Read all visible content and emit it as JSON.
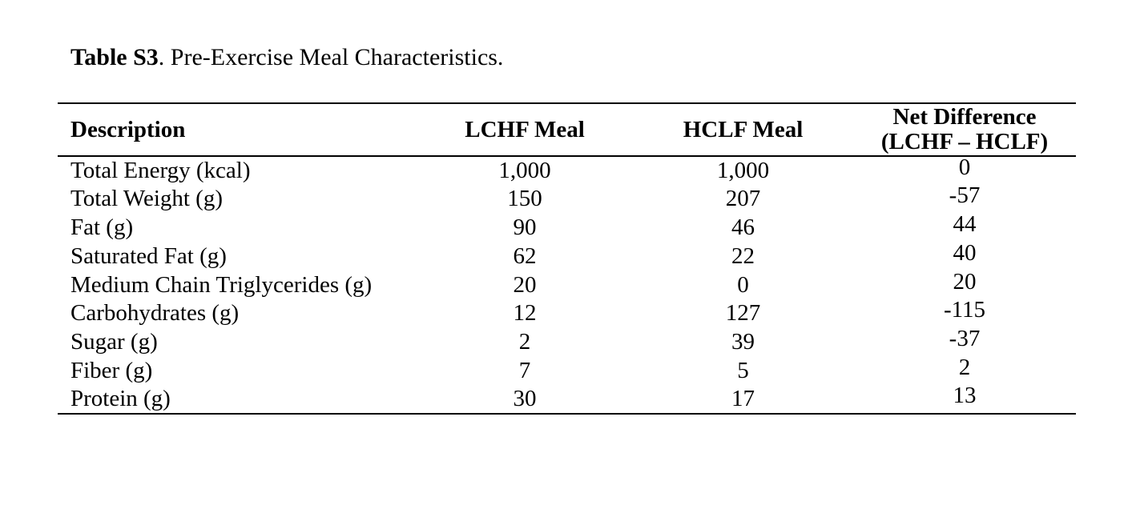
{
  "caption": {
    "label": "Table S3",
    "text": ". Pre-Exercise Meal Characteristics."
  },
  "colors": {
    "background": "#ffffff",
    "text": "#000000",
    "rules": "#000000"
  },
  "table": {
    "headers": {
      "description": "Description",
      "lchf": "LCHF Meal",
      "hclf": "HCLF Meal",
      "net_line1": "Net Difference",
      "net_line2": "(LCHF – HCLF)"
    },
    "rows": [
      {
        "description": "Total Energy (kcal)",
        "lchf": "1,000",
        "hclf": "1,000",
        "net": "0"
      },
      {
        "description": "Total Weight (g)",
        "lchf": "150",
        "hclf": "207",
        "net": "-57"
      },
      {
        "description": "Fat (g)",
        "lchf": "90",
        "hclf": "46",
        "net": "44"
      },
      {
        "description": "Saturated Fat (g)",
        "lchf": "62",
        "hclf": "22",
        "net": "40"
      },
      {
        "description": "Medium Chain Triglycerides (g)",
        "lchf": "20",
        "hclf": "0",
        "net": "20"
      },
      {
        "description": "Carbohydrates (g)",
        "lchf": "12",
        "hclf": "127",
        "net": "-115"
      },
      {
        "description": "Sugar (g)",
        "lchf": "2",
        "hclf": "39",
        "net": "-37"
      },
      {
        "description": "Fiber (g)",
        "lchf": "7",
        "hclf": "5",
        "net": "2"
      },
      {
        "description": "Protein (g)",
        "lchf": "30",
        "hclf": "17",
        "net": "13"
      }
    ]
  }
}
